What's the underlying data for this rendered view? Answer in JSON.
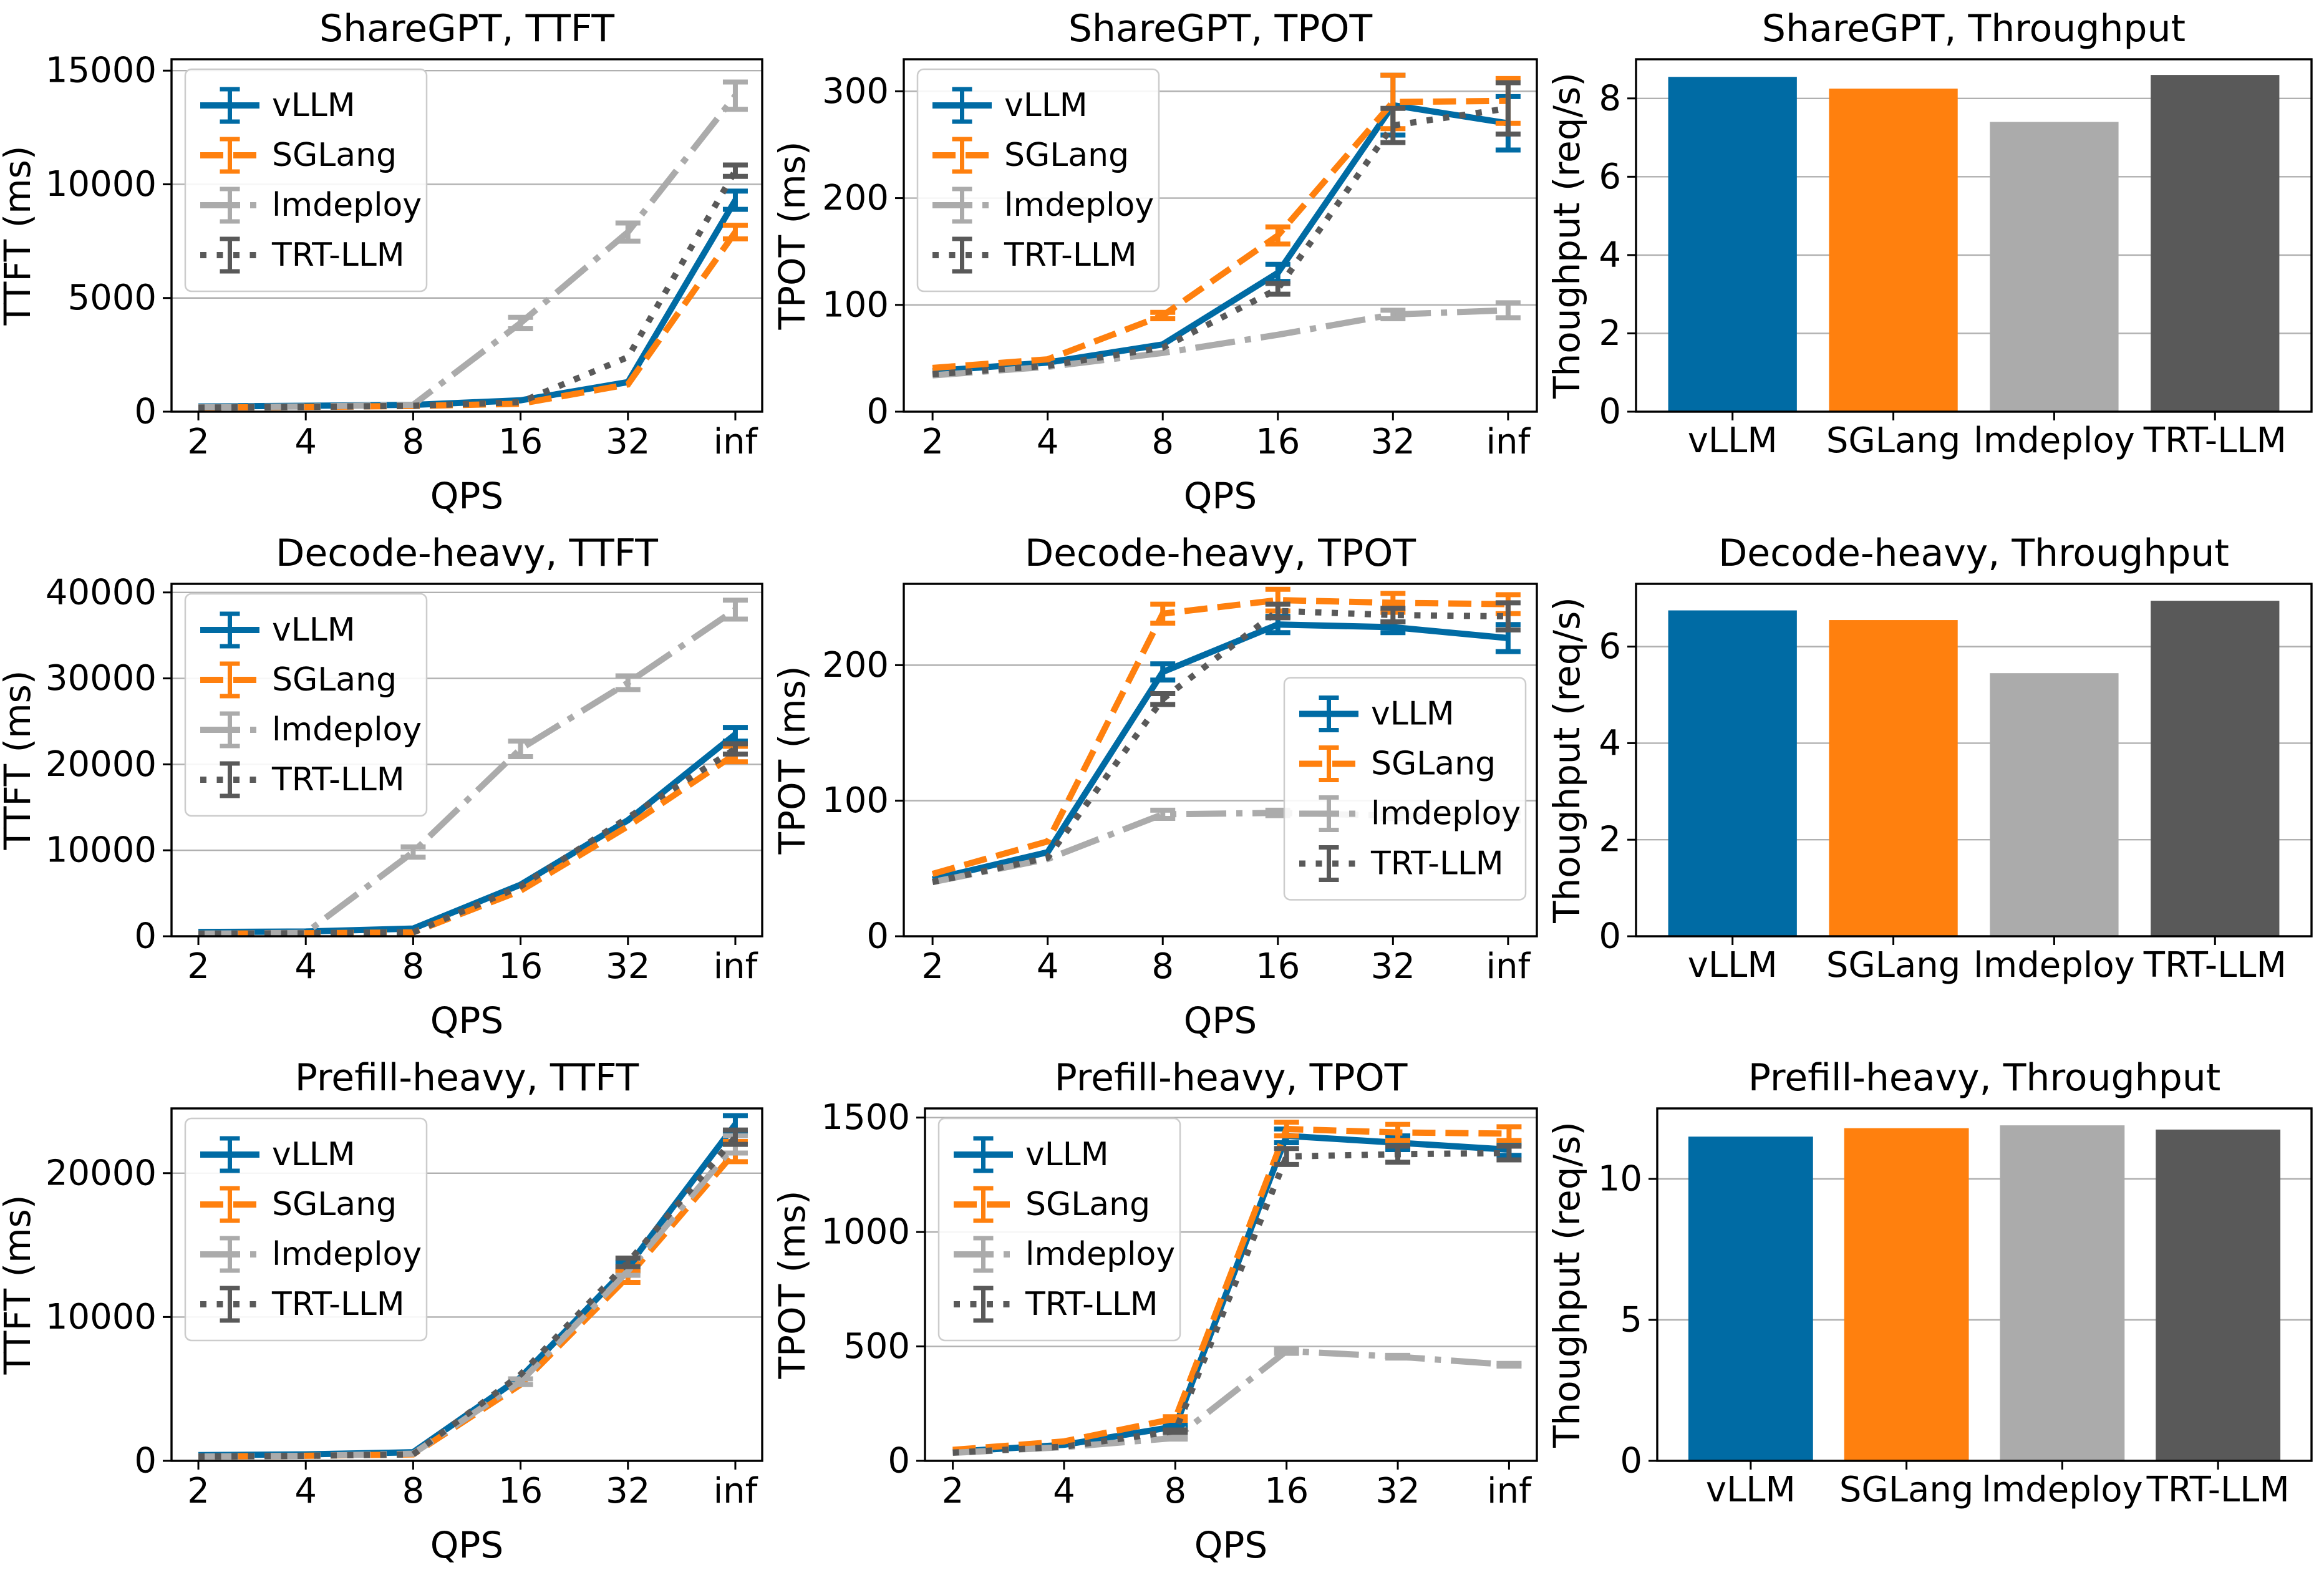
{
  "figure": {
    "background": "#ffffff",
    "text_color": "#000000",
    "grid_color": "#b0b0b0",
    "spine_color": "#000000",
    "legend_border_color": "#cccccc",
    "frameworks": [
      "vLLM",
      "SGLang",
      "lmdeploy",
      "TRT-LLM"
    ],
    "palette": {
      "vLLM": "#006BA4",
      "SGLang": "#FF800E",
      "lmdeploy": "#ABABAB",
      "TRT-LLM": "#595959"
    },
    "line_styles": {
      "vLLM": "solid",
      "SGLang": "dashed",
      "lmdeploy": "dashdot",
      "TRT-LLM": "dotted"
    }
  },
  "chart_data": [
    {
      "id": "sharegpt-ttft",
      "type": "line",
      "title": "ShareGPT, TTFT",
      "xlabel": "QPS",
      "ylabel": "TTFT (ms)",
      "xticklabels": [
        "2",
        "4",
        "8",
        "16",
        "32",
        "inf"
      ],
      "yticks": [
        0,
        5000,
        10000,
        15000
      ],
      "yticklabels": [
        "0",
        "5000",
        "10000",
        "15000"
      ],
      "ylim": [
        0,
        15500
      ],
      "grid": true,
      "legend_loc": "upper-left",
      "series": [
        {
          "name": "vLLM",
          "color": "#006BA4",
          "style": "solid",
          "values": [
            230,
            260,
            300,
            500,
            1300,
            9300
          ],
          "err": [
            0,
            0,
            0,
            0,
            0,
            400
          ]
        },
        {
          "name": "SGLang",
          "color": "#FF800E",
          "style": "dashed",
          "values": [
            180,
            210,
            250,
            350,
            1200,
            7900
          ],
          "err": [
            0,
            0,
            0,
            0,
            0,
            300
          ]
        },
        {
          "name": "lmdeploy",
          "color": "#ABABAB",
          "style": "dashdot",
          "values": [
            200,
            230,
            300,
            3900,
            7900,
            13900
          ],
          "err": [
            0,
            0,
            0,
            250,
            400,
            600
          ]
        },
        {
          "name": "TRT-LLM",
          "color": "#595959",
          "style": "dotted",
          "values": [
            180,
            210,
            260,
            420,
            2400,
            10600
          ],
          "err": [
            0,
            0,
            0,
            0,
            0,
            250
          ]
        }
      ]
    },
    {
      "id": "sharegpt-tpot",
      "type": "line",
      "title": "ShareGPT, TPOT",
      "xlabel": "QPS",
      "ylabel": "TPOT (ms)",
      "xticklabels": [
        "2",
        "4",
        "8",
        "16",
        "32",
        "inf"
      ],
      "yticks": [
        0,
        100,
        200,
        300
      ],
      "yticklabels": [
        "0",
        "100",
        "200",
        "300"
      ],
      "ylim": [
        0,
        330
      ],
      "grid": true,
      "legend_loc": "upper-left",
      "series": [
        {
          "name": "vLLM",
          "color": "#006BA4",
          "style": "solid",
          "values": [
            38,
            46,
            63,
            130,
            287,
            270
          ],
          "err": [
            0,
            0,
            0,
            8,
            28,
            25
          ]
        },
        {
          "name": "SGLang",
          "color": "#FF800E",
          "style": "dashed",
          "values": [
            41,
            49,
            90,
            165,
            290,
            291
          ],
          "err": [
            0,
            0,
            3,
            8,
            25,
            21
          ]
        },
        {
          "name": "lmdeploy",
          "color": "#ABABAB",
          "style": "dashdot",
          "values": [
            34,
            42,
            55,
            72,
            91,
            95
          ],
          "err": [
            0,
            0,
            0,
            0,
            4,
            7
          ]
        },
        {
          "name": "TRT-LLM",
          "color": "#595959",
          "style": "dotted",
          "values": [
            35,
            43,
            60,
            115,
            268,
            284
          ],
          "err": [
            0,
            0,
            0,
            5,
            16,
            24
          ]
        }
      ]
    },
    {
      "id": "sharegpt-throughput",
      "type": "bar",
      "title": "ShareGPT, Throughput",
      "xlabel": "",
      "ylabel": "Thoughput (req/s)",
      "xticklabels": [
        "vLLM",
        "SGLang",
        "lmdeploy",
        "TRT-LLM"
      ],
      "yticks": [
        0,
        2,
        4,
        6,
        8
      ],
      "yticklabels": [
        "0",
        "2",
        "4",
        "6",
        "8"
      ],
      "ylim": [
        0,
        9.0
      ],
      "grid": true,
      "legend_loc": null,
      "values": [
        8.55,
        8.25,
        7.4,
        8.6
      ],
      "colors": [
        "#006BA4",
        "#FF800E",
        "#ABABAB",
        "#595959"
      ]
    },
    {
      "id": "decode-heavy-ttft",
      "type": "line",
      "title": "Decode-heavy, TTFT",
      "xlabel": "QPS",
      "ylabel": "TTFT (ms)",
      "xticklabels": [
        "2",
        "4",
        "8",
        "16",
        "32",
        "inf"
      ],
      "yticks": [
        0,
        10000,
        20000,
        30000,
        40000
      ],
      "yticklabels": [
        "0",
        "10000",
        "20000",
        "30000",
        "40000"
      ],
      "ylim": [
        0,
        41000
      ],
      "grid": true,
      "legend_loc": "upper-left",
      "series": [
        {
          "name": "vLLM",
          "color": "#006BA4",
          "style": "solid",
          "values": [
            500,
            550,
            900,
            6000,
            13500,
            23500
          ],
          "err": [
            0,
            0,
            0,
            0,
            0,
            800
          ]
        },
        {
          "name": "SGLang",
          "color": "#FF800E",
          "style": "dashed",
          "values": [
            300,
            350,
            450,
            5300,
            12800,
            21200
          ],
          "err": [
            0,
            0,
            0,
            0,
            0,
            900
          ]
        },
        {
          "name": "lmdeploy",
          "color": "#ABABAB",
          "style": "dashdot",
          "values": [
            300,
            400,
            9800,
            21800,
            29500,
            38000
          ],
          "err": [
            0,
            0,
            600,
            900,
            800,
            1100
          ]
        },
        {
          "name": "TRT-LLM",
          "color": "#595959",
          "style": "dotted",
          "values": [
            300,
            350,
            450,
            5800,
            13800,
            21800
          ],
          "err": [
            0,
            0,
            0,
            0,
            0,
            600
          ]
        }
      ]
    },
    {
      "id": "decode-heavy-tpot",
      "type": "line",
      "title": "Decode-heavy, TPOT",
      "xlabel": "QPS",
      "ylabel": "TPOT (ms)",
      "xticklabels": [
        "2",
        "4",
        "8",
        "16",
        "32",
        "inf"
      ],
      "yticks": [
        0,
        100,
        200
      ],
      "yticklabels": [
        "0",
        "100",
        "200"
      ],
      "ylim": [
        0,
        260
      ],
      "grid": true,
      "legend_loc": "center-right",
      "series": [
        {
          "name": "vLLM",
          "color": "#006BA4",
          "style": "solid",
          "values": [
            42,
            62,
            195,
            230,
            228,
            220
          ],
          "err": [
            0,
            0,
            6,
            6,
            4,
            10
          ]
        },
        {
          "name": "SGLang",
          "color": "#FF800E",
          "style": "dashed",
          "values": [
            46,
            70,
            238,
            248,
            246,
            245
          ],
          "err": [
            0,
            0,
            7,
            8,
            7,
            7
          ]
        },
        {
          "name": "lmdeploy",
          "color": "#ABABAB",
          "style": "dashdot",
          "values": [
            40,
            57,
            90,
            91,
            89,
            88
          ],
          "err": [
            0,
            0,
            3,
            2,
            2,
            3
          ]
        },
        {
          "name": "TRT-LLM",
          "color": "#595959",
          "style": "dotted",
          "values": [
            40,
            58,
            175,
            240,
            237,
            236
          ],
          "err": [
            0,
            0,
            4,
            5,
            5,
            10
          ]
        }
      ]
    },
    {
      "id": "decode-heavy-throughput",
      "type": "bar",
      "title": "Decode-heavy, Throughput",
      "xlabel": "",
      "ylabel": "Thoughput (req/s)",
      "xticklabels": [
        "vLLM",
        "SGLang",
        "lmdeploy",
        "TRT-LLM"
      ],
      "yticks": [
        0,
        2,
        4,
        6
      ],
      "yticklabels": [
        "0",
        "2",
        "4",
        "6"
      ],
      "ylim": [
        0,
        7.3
      ],
      "grid": true,
      "legend_loc": null,
      "values": [
        6.75,
        6.55,
        5.45,
        6.95
      ],
      "colors": [
        "#006BA4",
        "#FF800E",
        "#ABABAB",
        "#595959"
      ]
    },
    {
      "id": "prefill-heavy-ttft",
      "type": "line",
      "title": "Prefill-heavy, TTFT",
      "xlabel": "QPS",
      "ylabel": "TTFT (ms)",
      "xticklabels": [
        "2",
        "4",
        "8",
        "16",
        "32",
        "inf"
      ],
      "yticks": [
        0,
        10000,
        20000
      ],
      "yticklabels": [
        "0",
        "10000",
        "20000"
      ],
      "ylim": [
        0,
        24500
      ],
      "grid": true,
      "legend_loc": "upper-left",
      "series": [
        {
          "name": "vLLM",
          "color": "#006BA4",
          "style": "solid",
          "values": [
            400,
            450,
            600,
            5800,
            13500,
            23400
          ],
          "err": [
            0,
            0,
            0,
            0,
            300,
            600
          ]
        },
        {
          "name": "SGLang",
          "color": "#FF800E",
          "style": "dashed",
          "values": [
            300,
            350,
            450,
            5300,
            12800,
            21500
          ],
          "err": [
            0,
            0,
            0,
            0,
            400,
            700
          ]
        },
        {
          "name": "lmdeploy",
          "color": "#ABABAB",
          "style": "dashdot",
          "values": [
            300,
            350,
            500,
            5500,
            13200,
            22000
          ],
          "err": [
            0,
            0,
            0,
            200,
            300,
            600
          ]
        },
        {
          "name": "TRT-LLM",
          "color": "#595959",
          "style": "dotted",
          "values": [
            300,
            350,
            450,
            6000,
            13800,
            22500
          ],
          "err": [
            0,
            0,
            0,
            0,
            300,
            500
          ]
        }
      ]
    },
    {
      "id": "prefill-heavy-tpot",
      "type": "line",
      "title": "Prefill-heavy, TPOT",
      "xlabel": "QPS",
      "ylabel": "TPOT (ms)",
      "xticklabels": [
        "2",
        "4",
        "8",
        "16",
        "32",
        "inf"
      ],
      "yticks": [
        0,
        500,
        1000,
        1500
      ],
      "yticklabels": [
        "0",
        "500",
        "1000",
        "1500"
      ],
      "ylim": [
        0,
        1540
      ],
      "grid": true,
      "legend_loc": "upper-left",
      "series": [
        {
          "name": "vLLM",
          "color": "#006BA4",
          "style": "solid",
          "values": [
            40,
            70,
            150,
            1420,
            1390,
            1360
          ],
          "err": [
            0,
            0,
            6,
            30,
            30,
            25
          ]
        },
        {
          "name": "SGLang",
          "color": "#FF800E",
          "style": "dashed",
          "values": [
            48,
            85,
            185,
            1450,
            1435,
            1430
          ],
          "err": [
            0,
            0,
            8,
            30,
            35,
            30
          ]
        },
        {
          "name": "lmdeploy",
          "color": "#ABABAB",
          "style": "dashdot",
          "values": [
            35,
            60,
            100,
            480,
            455,
            420
          ],
          "err": [
            0,
            0,
            5,
            10,
            6,
            6
          ]
        },
        {
          "name": "TRT-LLM",
          "color": "#595959",
          "style": "dotted",
          "values": [
            36,
            62,
            130,
            1330,
            1340,
            1345
          ],
          "err": [
            0,
            0,
            5,
            35,
            35,
            30
          ]
        }
      ]
    },
    {
      "id": "prefill-heavy-throughput",
      "type": "bar",
      "title": "Prefill-heavy, Throughput",
      "xlabel": "",
      "ylabel": "Thoughput (req/s)",
      "xticklabels": [
        "vLLM",
        "SGLang",
        "lmdeploy",
        "TRT-LLM"
      ],
      "yticks": [
        0,
        5,
        10
      ],
      "yticklabels": [
        "0",
        "5",
        "10"
      ],
      "ylim": [
        0,
        12.5
      ],
      "grid": true,
      "legend_loc": null,
      "values": [
        11.5,
        11.8,
        11.9,
        11.75
      ],
      "colors": [
        "#006BA4",
        "#FF800E",
        "#ABABAB",
        "#595959"
      ]
    }
  ]
}
